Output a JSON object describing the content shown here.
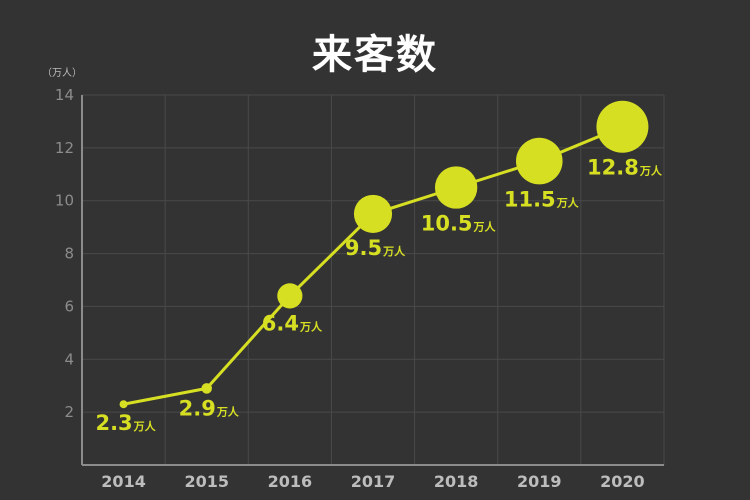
{
  "chart_data": {
    "type": "line",
    "title": "来客数",
    "y_unit": "（万人）",
    "categories": [
      "2014",
      "2015",
      "2016",
      "2017",
      "2018",
      "2019",
      "2020"
    ],
    "series": [
      {
        "values": [
          2.3,
          2.9,
          6.4,
          9.5,
          10.5,
          11.5,
          12.8
        ],
        "value_labels": [
          "2.3",
          "2.9",
          "6.4",
          "9.5",
          "10.5",
          "11.5",
          "12.8"
        ],
        "value_suffix": "万人",
        "color": "#d7df23"
      }
    ],
    "yticks": [
      2,
      4,
      6,
      8,
      10,
      12,
      14
    ],
    "ylim": [
      0,
      14
    ],
    "grid": true,
    "marker_size_scales_with_value": true,
    "colors": {
      "background": "#333333",
      "grid": "#4a4a4a",
      "axis": "#8c8c8c",
      "accent": "#d7df23"
    }
  }
}
